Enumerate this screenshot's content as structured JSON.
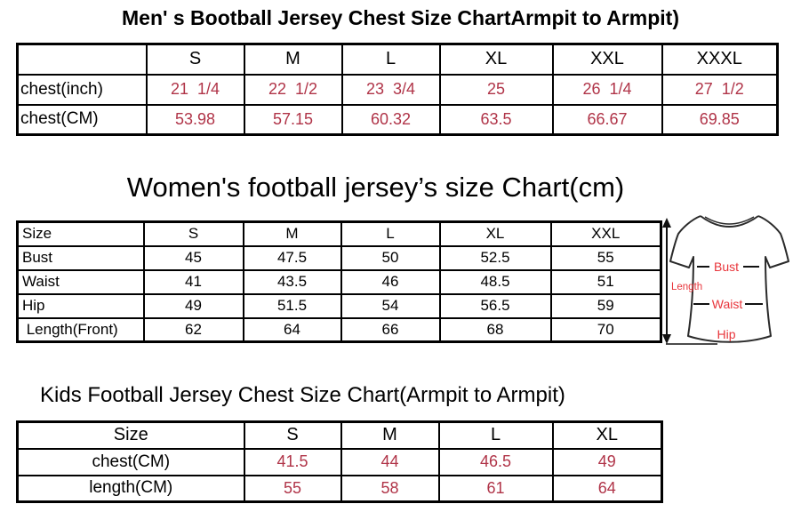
{
  "colors": {
    "table_value_red": "#b03448",
    "diagram_label_red": "#e8353b",
    "text_black": "#000000",
    "border_black": "#000000",
    "background": "#ffffff"
  },
  "men_chart": {
    "title": "Men' s Bootball Jersey Chest Size ChartArmpit to Armpit)",
    "columns": [
      "",
      "S",
      "M",
      "L",
      "XL",
      "XXL",
      "XXXL"
    ],
    "rows": [
      {
        "label": "chest(inch)",
        "values": [
          "21  1/4",
          "22  1/2",
          "23  3/4",
          "25",
          "26  1/4",
          "27  1/2"
        ]
      },
      {
        "label": "chest(CM)",
        "values": [
          "53.98",
          "57.15",
          "60.32",
          "63.5",
          "66.67",
          "69.85"
        ]
      }
    ]
  },
  "women_chart": {
    "title": "Women's football jersey’s size Chart(cm)",
    "columns": [
      "Size",
      "S",
      "M",
      "L",
      "XL",
      "XXL"
    ],
    "rows": [
      {
        "label": "Bust",
        "values": [
          "45",
          "47.5",
          "50",
          "52.5",
          "55"
        ]
      },
      {
        "label": "Waist",
        "values": [
          "41",
          "43.5",
          "46",
          "48.5",
          "51"
        ]
      },
      {
        "label": "Hip",
        "values": [
          "49",
          "51.5",
          "54",
          "56.5",
          "59"
        ]
      },
      {
        "label": " Length(Front)",
        "values": [
          "62",
          "64",
          "66",
          "68",
          "70"
        ]
      }
    ],
    "diagram_labels": {
      "length": "Length",
      "bust": "Bust",
      "waist": "Waist",
      "hip": "Hip"
    }
  },
  "kids_chart": {
    "title": "Kids Football Jersey Chest Size Chart(Armpit to Armpit)",
    "columns": [
      "Size",
      "S",
      "M",
      "L",
      "XL"
    ],
    "rows": [
      {
        "label": "chest(CM)",
        "values": [
          "41.5",
          "44",
          "46.5",
          "49"
        ]
      },
      {
        "label": "length(CM)",
        "values": [
          "55",
          "58",
          "61",
          "64"
        ]
      }
    ]
  }
}
